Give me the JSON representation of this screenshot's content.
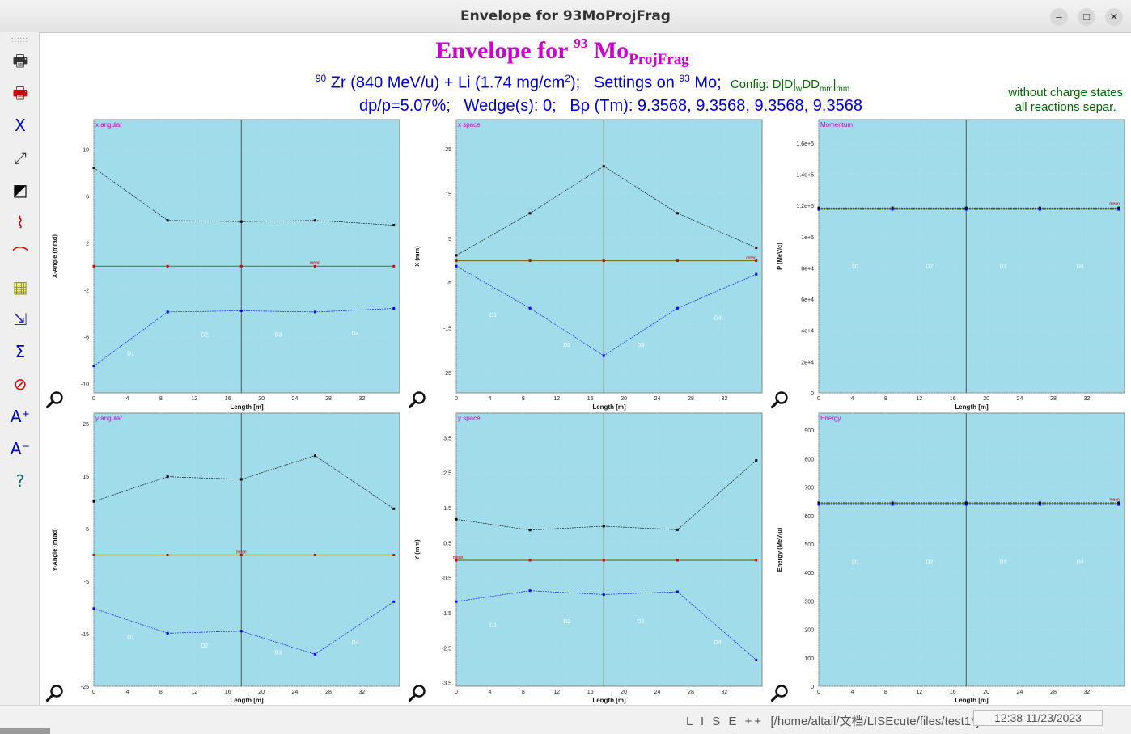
{
  "window": {
    "title": "Envelope for 93MoProjFrag",
    "minimize": "–",
    "maximize": "□",
    "close": "✕"
  },
  "header": {
    "title_prefix": "Envelope for ",
    "title_mass": "93",
    "title_element": "Mo",
    "title_sub": "ProjFrag",
    "proj_mass": "90",
    "reaction_text": " Zr (840 MeV/u) + Li (1.74 mg/cm",
    "reaction_sup": "2",
    "reaction_end": ");   Settings on ",
    "setting_mass": "93",
    "setting_text": " Mo;",
    "config_prefix": "Config: D|D|",
    "config_sub1": "w",
    "config_mid": "DD",
    "config_sub2": "mm",
    "config_sep": "|",
    "config_sub3": "mm",
    "settings_line": "dp/p=5.07%;   Wedge(s): 0;   Bρ (Tm): 9.3568, 9.3568, 9.3568, 9.3568",
    "note1": "without charge states",
    "note2": "all reactions separ."
  },
  "toolbar": {
    "grip": "::::::",
    "tools": [
      {
        "name": "print-icon",
        "glyph": "🖶",
        "color": "#333333"
      },
      {
        "name": "print-color-icon",
        "glyph": "🖶",
        "color": "#cc0000"
      },
      {
        "name": "x-axis-icon",
        "glyph": "X",
        "color": "#0000cc"
      },
      {
        "name": "resize-axes-icon",
        "glyph": "⤢",
        "color": "#333333"
      },
      {
        "name": "color-palette-icon",
        "glyph": "◩",
        "color": "#000000"
      },
      {
        "name": "plot-chart-icon",
        "glyph": "⌇",
        "color": "#cc0000"
      },
      {
        "name": "curve-fit-icon",
        "glyph": "⌒",
        "color": "#cc0000"
      },
      {
        "name": "grid-panel-icon",
        "glyph": "▦",
        "color": "#999900"
      },
      {
        "name": "export-data-icon",
        "glyph": "⇲",
        "color": "#333399"
      },
      {
        "name": "statistics-icon",
        "glyph": "Σ",
        "color": "#0000cc"
      },
      {
        "name": "no-zoom-icon",
        "glyph": "⊘",
        "color": "#cc0000"
      },
      {
        "name": "font-increase-icon",
        "glyph": "A⁺",
        "color": "#0000cc"
      },
      {
        "name": "font-decrease-icon",
        "glyph": "A⁻",
        "color": "#0000cc"
      },
      {
        "name": "help-icon",
        "glyph": "?",
        "color": "#006666"
      }
    ]
  },
  "colors": {
    "plot_bg": "#a0dcea",
    "upper": "#000000",
    "lower": "#0000ff",
    "mean": "#dd0000",
    "mean_line": "#6b7a1e",
    "element_line": "#555555",
    "panel_label": "#cc00cc",
    "region_label": "#ffffff"
  },
  "chart_data": [
    {
      "type": "line",
      "panel_label": "x angular",
      "ylabel": "X-Angle (mrad)",
      "xlabel": "Length [m]",
      "xlim": [
        0,
        36.5
      ],
      "ylim": [
        -10.8,
        12.5
      ],
      "yticks": [
        "10",
        "6",
        "2",
        "-2",
        "-6",
        "-10"
      ],
      "ytick_values": [
        10,
        6,
        2,
        -2,
        -6,
        -10
      ],
      "xticks": [
        "0",
        "4",
        "8",
        "12",
        "16",
        "20",
        "24",
        "28",
        "32"
      ],
      "xtick_values": [
        0,
        4,
        8,
        12,
        16,
        20,
        24,
        28,
        32
      ],
      "x": [
        0,
        8.8,
        17.6,
        26.4,
        35.8
      ],
      "upper": [
        8.4,
        3.9,
        3.8,
        3.9,
        3.5
      ],
      "lower": [
        -8.5,
        -3.9,
        -3.8,
        -3.9,
        -3.6
      ],
      "mean": [
        0,
        0,
        0,
        0,
        0
      ],
      "mean_label": "mean",
      "mean_label_x": 26.4,
      "mean_label_y": 0.2,
      "element_x": [
        17.6
      ],
      "regions": [
        {
          "label": "D1",
          "x": 4.4,
          "y": -7.6
        },
        {
          "label": "D2",
          "x": 13.2,
          "y": -6
        },
        {
          "label": "D3",
          "x": 22,
          "y": -6
        },
        {
          "label": "D4",
          "x": 31.2,
          "y": -5.9
        }
      ]
    },
    {
      "type": "line",
      "panel_label": "x space",
      "ylabel": "X (mm)",
      "xlabel": "Length [m]",
      "xlim": [
        0,
        36.5
      ],
      "ylim": [
        -29.5,
        31.5
      ],
      "yticks": [
        "25",
        "15",
        "5",
        "-5",
        "-15",
        "-25"
      ],
      "ytick_values": [
        25,
        15,
        5,
        -5,
        -15,
        -25
      ],
      "xticks": [
        "0",
        "4",
        "8",
        "12",
        "16",
        "20",
        "24",
        "28",
        "32"
      ],
      "xtick_values": [
        0,
        4,
        8,
        12,
        16,
        20,
        24,
        28,
        32
      ],
      "x": [
        0,
        8.8,
        17.6,
        26.4,
        35.8
      ],
      "upper": [
        1.2,
        10.6,
        21.1,
        10.6,
        2.9
      ],
      "lower": [
        -1.2,
        -10.6,
        -21.2,
        -10.6,
        -3
      ],
      "mean": [
        0,
        0,
        0,
        0,
        0
      ],
      "mean_label": "mean",
      "mean_label_x": 35.2,
      "mean_label_y": 0.4,
      "element_x": [
        17.6
      ],
      "regions": [
        {
          "label": "D1",
          "x": 4.4,
          "y": -12.5
        },
        {
          "label": "D2",
          "x": 13.2,
          "y": -19.2
        },
        {
          "label": "D3",
          "x": 22,
          "y": -19.2
        },
        {
          "label": "D4",
          "x": 31.2,
          "y": -13.2
        }
      ]
    },
    {
      "type": "line",
      "panel_label": "Momentum",
      "ylabel": "P (MeV/c)",
      "xlabel": "Length [m]",
      "xlim": [
        0,
        36.5
      ],
      "ylim": [
        0,
        175000
      ],
      "yticks": [
        "1.6e+5",
        "1.4e+5",
        "1.2e+5",
        "1e+5",
        "8e+4",
        "6e+4",
        "4e+4",
        "2e+4",
        "0"
      ],
      "ytick_values": [
        160000,
        140000,
        120000,
        100000,
        80000,
        60000,
        40000,
        20000,
        0
      ],
      "xticks": [
        "0",
        "4",
        "8",
        "12",
        "16",
        "20",
        "24",
        "28",
        "32"
      ],
      "xtick_values": [
        0,
        4,
        8,
        12,
        16,
        20,
        24,
        28,
        32
      ],
      "x": [
        0,
        8.8,
        17.6,
        26.4,
        35.8
      ],
      "upper": [
        118500,
        118500,
        118500,
        118500,
        118500
      ],
      "lower": [
        117500,
        117500,
        117500,
        117500,
        117500
      ],
      "mean": [
        118000,
        118000,
        118000,
        118000,
        118000
      ],
      "mean_label": "mean",
      "mean_label_x": 35.3,
      "mean_label_y": 120500,
      "element_x": [
        17.6
      ],
      "regions": [
        {
          "label": "D1",
          "x": 4.4,
          "y": 80000
        },
        {
          "label": "D2",
          "x": 13.2,
          "y": 80000
        },
        {
          "label": "D3",
          "x": 22,
          "y": 80000
        },
        {
          "label": "D4",
          "x": 31.2,
          "y": 80000
        }
      ]
    },
    {
      "type": "line",
      "panel_label": "y angular",
      "ylabel": "Y-Angle (mrad)",
      "xlabel": "Length [m]",
      "xlim": [
        0,
        36.5
      ],
      "ylim": [
        -25,
        27
      ],
      "yticks": [
        "25",
        "15",
        "5",
        "-5",
        "-15",
        "-25"
      ],
      "ytick_values": [
        25,
        15,
        5,
        -5,
        -15,
        -25
      ],
      "xticks": [
        "0",
        "4",
        "8",
        "12",
        "16",
        "20",
        "24",
        "28",
        "32"
      ],
      "xtick_values": [
        0,
        4,
        8,
        12,
        16,
        20,
        24,
        28,
        32
      ],
      "x": [
        0,
        8.8,
        17.6,
        26.4,
        35.8
      ],
      "upper": [
        10.2,
        14.9,
        14.4,
        18.9,
        8.8
      ],
      "lower": [
        -10.2,
        -14.9,
        -14.5,
        -18.9,
        -8.9
      ],
      "mean": [
        0,
        0,
        0,
        0,
        0
      ],
      "mean_label": "mean",
      "mean_label_x": 17.6,
      "mean_label_y": 0.3,
      "element_x": [
        17.6
      ],
      "regions": [
        {
          "label": "D1",
          "x": 4.4,
          "y": -16
        },
        {
          "label": "D2",
          "x": 13.2,
          "y": -17.6
        },
        {
          "label": "D3",
          "x": 22,
          "y": -18.9
        },
        {
          "label": "D4",
          "x": 31.2,
          "y": -17
        }
      ]
    },
    {
      "type": "line",
      "panel_label": "y space",
      "ylabel": "Y (mm)",
      "xlabel": "Length [m]",
      "xlim": [
        0,
        36.5
      ],
      "ylim": [
        -3.6,
        4.2
      ],
      "yticks": [
        "3.5",
        "2.5",
        "1.5",
        "0.5",
        "-0.5",
        "-1.5",
        "-2.5",
        "-3.5"
      ],
      "ytick_values": [
        3.5,
        2.5,
        1.5,
        0.5,
        -0.5,
        -1.5,
        -2.5,
        -3.5
      ],
      "xticks": [
        "0",
        "4",
        "8",
        "12",
        "16",
        "20",
        "24",
        "28",
        "32"
      ],
      "xtick_values": [
        0,
        4,
        8,
        12,
        16,
        20,
        24,
        28,
        32
      ],
      "x": [
        0,
        8.8,
        17.6,
        26.4,
        35.8
      ],
      "upper": [
        1.17,
        0.86,
        0.97,
        0.87,
        2.85
      ],
      "lower": [
        -1.18,
        -0.87,
        -0.98,
        -0.9,
        -2.85
      ],
      "mean": [
        0,
        0,
        0,
        0,
        0
      ],
      "mean_label": "mean",
      "mean_label_x": 0.2,
      "mean_label_y": 0.05,
      "element_x": [
        17.6
      ],
      "regions": [
        {
          "label": "D1",
          "x": 4.4,
          "y": -1.9
        },
        {
          "label": "D2",
          "x": 13.2,
          "y": -1.8
        },
        {
          "label": "D3",
          "x": 22,
          "y": -1.8
        },
        {
          "label": "D4",
          "x": 31.2,
          "y": -2.4
        }
      ]
    },
    {
      "type": "line",
      "panel_label": "Energy",
      "ylabel": "Energy (MeV/u)",
      "xlabel": "Length [m]",
      "xlim": [
        0,
        36.5
      ],
      "ylim": [
        0,
        960
      ],
      "yticks": [
        "900",
        "800",
        "700",
        "600",
        "500",
        "400",
        "300",
        "200",
        "100",
        "0"
      ],
      "ytick_values": [
        900,
        800,
        700,
        600,
        500,
        400,
        300,
        200,
        100,
        0
      ],
      "xticks": [
        "0",
        "4",
        "8",
        "12",
        "16",
        "20",
        "24",
        "28",
        "32"
      ],
      "xtick_values": [
        0,
        4,
        8,
        12,
        16,
        20,
        24,
        28,
        32
      ],
      "x": [
        0,
        8.8,
        17.6,
        26.4,
        35.8
      ],
      "upper": [
        645,
        645,
        645,
        645,
        645
      ],
      "lower": [
        639,
        639,
        639,
        639,
        639
      ],
      "mean": [
        642,
        642,
        642,
        642,
        642
      ],
      "mean_label": "mean",
      "mean_label_x": 35.3,
      "mean_label_y": 652,
      "element_x": [
        17.6
      ],
      "regions": [
        {
          "label": "D1",
          "x": 4.4,
          "y": 430
        },
        {
          "label": "D2",
          "x": 13.2,
          "y": 430
        },
        {
          "label": "D3",
          "x": 22,
          "y": 430
        },
        {
          "label": "D4",
          "x": 31.2,
          "y": 430
        }
      ]
    }
  ],
  "status": {
    "app": "L I S E ++",
    "path": "  [/home/altail/文档/LISEcute/files/test1*]",
    "time": "12:38  11/23/2023"
  }
}
